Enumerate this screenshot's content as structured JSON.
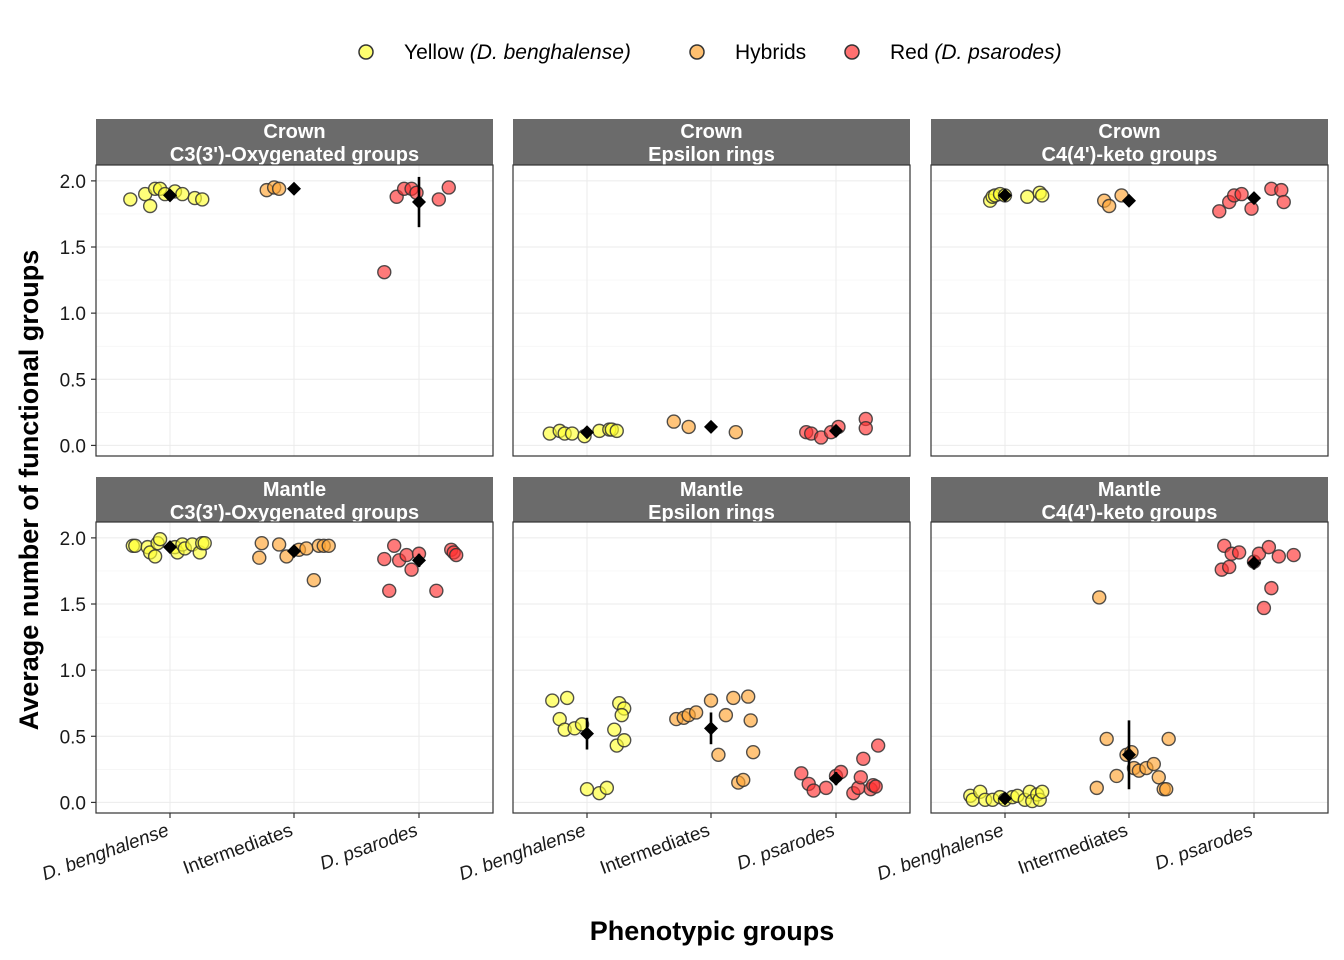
{
  "chart_data": {
    "type": "scatter",
    "xlabel": "Phenotypic groups",
    "ylabel": "Average number of functional groups",
    "categories": [
      "D. benghalense",
      "Intermediates",
      "D. psarodes"
    ],
    "ylim": [
      -0.08,
      2.12
    ],
    "yticks": [
      "0.0",
      "0.5",
      "1.0",
      "1.5",
      "2.0"
    ],
    "legend": {
      "position": "top",
      "entries": [
        {
          "label": "Yellow",
          "italic": "(D. benghalense)",
          "color": "#ffff33"
        },
        {
          "label": "Hybrids",
          "italic": "",
          "color": "#ffa533"
        },
        {
          "label": "Red",
          "italic": "(D. psarodes)",
          "color": "#ff3333"
        }
      ]
    },
    "panels": [
      {
        "id": "crown-c3",
        "row": 0,
        "col": 0,
        "strip_line1": "Crown",
        "strip_line2": "C3(3')-Oxygenated groups",
        "groups": [
          {
            "points": [
              [
                -0.32,
                1.86
              ],
              [
                -0.2,
                1.9
              ],
              [
                -0.16,
                1.81
              ],
              [
                -0.12,
                1.94
              ],
              [
                -0.08,
                1.94
              ],
              [
                -0.04,
                1.9
              ],
              [
                0.04,
                1.92
              ],
              [
                0.1,
                1.9
              ],
              [
                0.2,
                1.87
              ],
              [
                0.26,
                1.86
              ]
            ],
            "mean": 1.89,
            "err": 0.03
          },
          {
            "points": [
              [
                -0.22,
                1.93
              ],
              [
                -0.16,
                1.95
              ],
              [
                -0.12,
                1.94
              ]
            ],
            "mean": 1.94,
            "err": 0.01
          },
          {
            "points": [
              [
                -0.28,
                1.31
              ],
              [
                -0.18,
                1.88
              ],
              [
                -0.12,
                1.94
              ],
              [
                -0.06,
                1.94
              ],
              [
                -0.02,
                1.91
              ],
              [
                0.16,
                1.86
              ],
              [
                0.24,
                1.95
              ]
            ],
            "mean": 1.84,
            "err": 0.19
          }
        ]
      },
      {
        "id": "crown-eps",
        "row": 0,
        "col": 1,
        "strip_line1": "Crown",
        "strip_line2": "Epsilon rings",
        "groups": [
          {
            "points": [
              [
                -0.3,
                0.09
              ],
              [
                -0.22,
                0.11
              ],
              [
                -0.18,
                0.09
              ],
              [
                -0.12,
                0.09
              ],
              [
                -0.02,
                0.07
              ],
              [
                0.1,
                0.11
              ],
              [
                0.18,
                0.12
              ],
              [
                0.2,
                0.12
              ],
              [
                0.24,
                0.11
              ]
            ],
            "mean": 0.1,
            "err": 0.02
          },
          {
            "points": [
              [
                -0.3,
                0.18
              ],
              [
                -0.18,
                0.14
              ],
              [
                0.2,
                0.1
              ]
            ],
            "mean": 0.14,
            "err": 0.02
          },
          {
            "points": [
              [
                -0.24,
                0.1
              ],
              [
                -0.2,
                0.09
              ],
              [
                -0.12,
                0.06
              ],
              [
                -0.04,
                0.1
              ],
              [
                0.02,
                0.14
              ],
              [
                0.24,
                0.2
              ],
              [
                0.24,
                0.13
              ]
            ],
            "mean": 0.11,
            "err": 0.03
          }
        ]
      },
      {
        "id": "crown-c4",
        "row": 0,
        "col": 2,
        "strip_line1": "Crown",
        "strip_line2": "C4(4')-keto groups",
        "groups": [
          {
            "points": [
              [
                -0.12,
                1.85
              ],
              [
                -0.1,
                1.88
              ],
              [
                -0.08,
                1.89
              ],
              [
                -0.04,
                1.9
              ],
              [
                0,
                1.89
              ],
              [
                0.18,
                1.88
              ],
              [
                0.28,
                1.91
              ],
              [
                0.3,
                1.89
              ]
            ],
            "mean": 1.89,
            "err": 0.02
          },
          {
            "points": [
              [
                -0.2,
                1.85
              ],
              [
                -0.16,
                1.81
              ],
              [
                -0.06,
                1.89
              ]
            ],
            "mean": 1.85,
            "err": 0.03
          },
          {
            "points": [
              [
                -0.28,
                1.77
              ],
              [
                -0.2,
                1.84
              ],
              [
                -0.16,
                1.89
              ],
              [
                -0.1,
                1.9
              ],
              [
                -0.02,
                1.79
              ],
              [
                0.14,
                1.94
              ],
              [
                0.22,
                1.93
              ],
              [
                0.24,
                1.84
              ]
            ],
            "mean": 1.87,
            "err": 0.03
          }
        ]
      },
      {
        "id": "mantle-c3",
        "row": 1,
        "col": 0,
        "strip_line1": "Mantle",
        "strip_line2": "C3(3')-Oxygenated groups",
        "groups": [
          {
            "points": [
              [
                -0.3,
                1.94
              ],
              [
                -0.28,
                1.94
              ],
              [
                -0.18,
                1.93
              ],
              [
                -0.16,
                1.89
              ],
              [
                -0.12,
                1.86
              ],
              [
                -0.1,
                1.96
              ],
              [
                -0.08,
                1.99
              ],
              [
                0.04,
                1.93
              ],
              [
                0.06,
                1.89
              ],
              [
                0.1,
                1.95
              ],
              [
                0.12,
                1.92
              ],
              [
                0.18,
                1.95
              ],
              [
                0.24,
                1.89
              ],
              [
                0.26,
                1.96
              ],
              [
                0.28,
                1.96
              ]
            ],
            "mean": 1.93,
            "err": 0.03
          },
          {
            "points": [
              [
                -0.28,
                1.85
              ],
              [
                -0.26,
                1.96
              ],
              [
                -0.12,
                1.95
              ],
              [
                -0.06,
                1.86
              ],
              [
                0.04,
                1.91
              ],
              [
                0.1,
                1.92
              ],
              [
                0.16,
                1.68
              ],
              [
                0.2,
                1.94
              ],
              [
                0.24,
                1.94
              ],
              [
                0.28,
                1.94
              ]
            ],
            "mean": 1.9,
            "err": 0.03
          },
          {
            "points": [
              [
                -0.28,
                1.84
              ],
              [
                -0.24,
                1.6
              ],
              [
                -0.2,
                1.94
              ],
              [
                -0.16,
                1.83
              ],
              [
                -0.1,
                1.87
              ],
              [
                -0.06,
                1.76
              ],
              [
                0.0,
                1.88
              ],
              [
                0.14,
                1.6
              ],
              [
                0.26,
                1.91
              ],
              [
                0.28,
                1.89
              ],
              [
                0.3,
                1.87
              ]
            ],
            "mean": 1.83,
            "err": 0.05
          }
        ]
      },
      {
        "id": "mantle-eps",
        "row": 1,
        "col": 1,
        "strip_line1": "Mantle",
        "strip_line2": "Epsilon rings",
        "groups": [
          {
            "points": [
              [
                -0.28,
                0.77
              ],
              [
                -0.22,
                0.63
              ],
              [
                -0.18,
                0.55
              ],
              [
                -0.16,
                0.79
              ],
              [
                -0.1,
                0.56
              ],
              [
                -0.04,
                0.59
              ],
              [
                0.0,
                0.1
              ],
              [
                0.1,
                0.07
              ],
              [
                0.16,
                0.11
              ],
              [
                0.22,
                0.55
              ],
              [
                0.24,
                0.43
              ],
              [
                0.26,
                0.75
              ],
              [
                0.3,
                0.71
              ],
              [
                0.28,
                0.66
              ],
              [
                0.3,
                0.47
              ]
            ],
            "mean": 0.52,
            "err": 0.12
          },
          {
            "points": [
              [
                -0.28,
                0.63
              ],
              [
                -0.22,
                0.64
              ],
              [
                -0.18,
                0.66
              ],
              [
                -0.12,
                0.68
              ],
              [
                0.0,
                0.77
              ],
              [
                0.06,
                0.36
              ],
              [
                0.12,
                0.66
              ],
              [
                0.18,
                0.79
              ],
              [
                0.22,
                0.15
              ],
              [
                0.26,
                0.17
              ],
              [
                0.3,
                0.8
              ],
              [
                0.32,
                0.62
              ],
              [
                0.34,
                0.38
              ]
            ],
            "mean": 0.56,
            "err": 0.12
          },
          {
            "points": [
              [
                -0.28,
                0.22
              ],
              [
                -0.22,
                0.14
              ],
              [
                -0.18,
                0.09
              ],
              [
                -0.08,
                0.11
              ],
              [
                0.0,
                0.2
              ],
              [
                0.04,
                0.23
              ],
              [
                0.14,
                0.07
              ],
              [
                0.18,
                0.11
              ],
              [
                0.2,
                0.19
              ],
              [
                0.22,
                0.33
              ],
              [
                0.28,
                0.1
              ],
              [
                0.3,
                0.13
              ],
              [
                0.32,
                0.12
              ],
              [
                0.34,
                0.43
              ]
            ],
            "mean": 0.18,
            "err": 0.05
          }
        ]
      },
      {
        "id": "mantle-c4",
        "row": 1,
        "col": 2,
        "strip_line1": "Mantle",
        "strip_line2": "C4(4')-keto groups",
        "groups": [
          {
            "points": [
              [
                -0.28,
                0.05
              ],
              [
                -0.26,
                0.02
              ],
              [
                -0.2,
                0.08
              ],
              [
                -0.16,
                0.02
              ],
              [
                -0.1,
                0.02
              ],
              [
                -0.04,
                0.04
              ],
              [
                0.0,
                0.02
              ],
              [
                0.06,
                0.04
              ],
              [
                0.1,
                0.05
              ],
              [
                0.16,
                0.02
              ],
              [
                0.2,
                0.08
              ],
              [
                0.22,
                0.01
              ],
              [
                0.26,
                0.06
              ],
              [
                0.28,
                0.02
              ],
              [
                0.3,
                0.08
              ]
            ],
            "mean": 0.03,
            "err": 0.02
          },
          {
            "points": [
              [
                -0.26,
                0.11
              ],
              [
                -0.24,
                1.55
              ],
              [
                -0.18,
                0.48
              ],
              [
                -0.1,
                0.2
              ],
              [
                -0.02,
                0.36
              ],
              [
                0.02,
                0.38
              ],
              [
                0.04,
                0.26
              ],
              [
                0.08,
                0.24
              ],
              [
                0.14,
                0.26
              ],
              [
                0.2,
                0.29
              ],
              [
                0.24,
                0.19
              ],
              [
                0.28,
                0.1
              ],
              [
                0.32,
                0.48
              ],
              [
                0.3,
                0.1
              ]
            ],
            "mean": 0.36,
            "err": 0.26
          },
          {
            "points": [
              [
                -0.26,
                1.76
              ],
              [
                -0.24,
                1.94
              ],
              [
                -0.2,
                1.78
              ],
              [
                -0.18,
                1.88
              ],
              [
                -0.12,
                1.89
              ],
              [
                0.0,
                1.82
              ],
              [
                0.04,
                1.88
              ],
              [
                0.08,
                1.47
              ],
              [
                0.12,
                1.93
              ],
              [
                0.14,
                1.62
              ],
              [
                0.2,
                1.86
              ],
              [
                0.32,
                1.87
              ]
            ],
            "mean": 1.81,
            "err": 0.05
          }
        ]
      }
    ]
  }
}
